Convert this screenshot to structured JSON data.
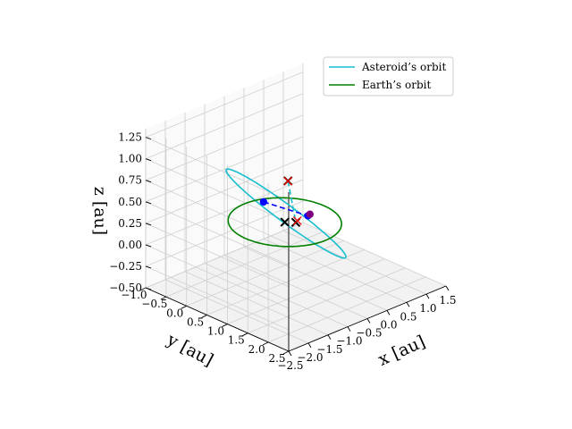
{
  "chart_data": {
    "type": "line",
    "projection": "3d",
    "title": "",
    "axes": {
      "x": {
        "label": "x [au]",
        "lim": [
          -2.5,
          1.5
        ],
        "ticks": [
          -2.5,
          -2.0,
          -1.5,
          -1.0,
          -0.5,
          0.0,
          0.5,
          1.0,
          1.5
        ],
        "tick_labels": [
          "−2.5",
          "−2.0",
          "−1.5",
          "−1.0",
          "−0.5",
          "0.0",
          "0.5",
          "1.0",
          "1.5"
        ]
      },
      "y": {
        "label": "y [au]",
        "lim": [
          -1.0,
          2.5
        ],
        "ticks": [
          -1.0,
          -0.5,
          0.0,
          0.5,
          1.0,
          1.5,
          2.0,
          2.5
        ],
        "tick_labels": [
          "−1.0",
          "−0.5",
          "0.0",
          "0.5",
          "1.0",
          "1.5",
          "2.0",
          "2.5"
        ]
      },
      "z": {
        "label": "z [au]",
        "lim": [
          -0.5,
          1.35
        ],
        "ticks": [
          -0.5,
          -0.25,
          0.0,
          0.25,
          0.5,
          0.75,
          1.0,
          1.25
        ],
        "tick_labels": [
          "−0.50",
          "−0.25",
          "0.00",
          "0.25",
          "0.50",
          "0.75",
          "1.00",
          "1.25"
        ]
      }
    },
    "grid": true,
    "legend": {
      "placement": "top-right",
      "entries": [
        "Asteroid’s orbit",
        "Earth’s orbit"
      ]
    },
    "series": [
      {
        "name": "Asteroid’s orbit",
        "kind": "ellipse",
        "color": "#17becf",
        "style": "solid",
        "center": [
          -0.75,
          0.75,
          0.4
        ],
        "u": [
          1.1,
          -1.1,
          -0.55
        ],
        "v": [
          -0.9,
          -0.6,
          0.55
        ]
      },
      {
        "name": "Earth’s orbit",
        "kind": "circle",
        "color": "#008000",
        "style": "solid",
        "center": [
          0,
          0,
          0
        ],
        "u": [
          1,
          0,
          0
        ],
        "v": [
          0,
          1,
          0
        ]
      }
    ],
    "lines": [
      {
        "color": "#0000ff",
        "style": "dashed",
        "from": [
          -2.1,
          1.5,
          0.95
        ],
        "to": [
          0.95,
          -0.35,
          -0.18
        ]
      },
      {
        "color": "#17becf",
        "style": "dashed",
        "from": [
          -2.05,
          2.05,
          1.3
        ],
        "to": [
          0.85,
          -0.55,
          -0.28
        ]
      }
    ],
    "points": [
      {
        "marker": "circle",
        "color": "#0000ff",
        "pos": [
          -2.1,
          1.5,
          0.95
        ]
      },
      {
        "marker": "circle",
        "color": "#0000ff",
        "pos": [
          0.95,
          -0.35,
          -0.18
        ]
      },
      {
        "marker": "circle",
        "color": "#800080",
        "pos": [
          0.97,
          -0.32,
          -0.16
        ]
      },
      {
        "marker": "x",
        "color": "#000000",
        "pos": [
          -2.05,
          2.05,
          1.3
        ]
      },
      {
        "marker": "x",
        "color": "#000000",
        "pos": [
          0,
          0,
          0
        ]
      },
      {
        "marker": "x",
        "color": "#000000",
        "pos": [
          0.85,
          -0.55,
          -0.28
        ]
      },
      {
        "marker": "x",
        "color": "#ff0000",
        "pos": [
          -2.03,
          2.03,
          1.29
        ]
      },
      {
        "marker": "x",
        "color": "#ff0000",
        "pos": [
          0.87,
          -0.53,
          -0.26
        ]
      }
    ],
    "colors": {
      "asteroid": "#17becf",
      "earth": "#008000",
      "line": "#0000ff"
    }
  }
}
